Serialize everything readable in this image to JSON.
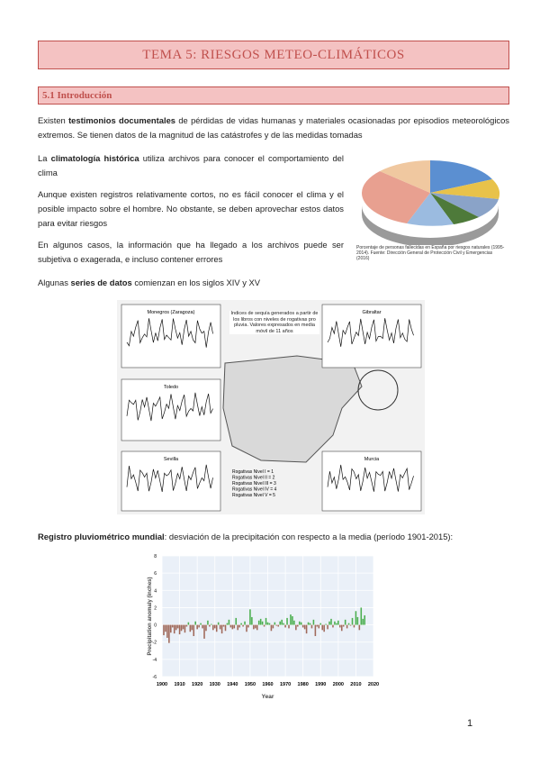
{
  "header": {
    "title": "TEMA 5: RIESGOS METEO-CLIMÁTICOS"
  },
  "section": {
    "title": "5.1 Introducción"
  },
  "paragraphs": [
    [
      "Existen ",
      "testimonios documentales",
      " de pérdidas de vidas humanas y materiales ocasionadas por episodios meteorológicos extremos. Se tienen datos de la magnitud de las catástrofes y de las medidas tomadas"
    ],
    [
      "La ",
      "climatología histórica",
      " utiliza archivos para conocer el comportamiento del clima"
    ],
    [
      "Aunque existen registros relativamente cortos, no es fácil conocer el clima y el posible impacto sobre el hombre. No obstante, se deben aprovechar estos datos para evitar riesgos"
    ],
    [
      "En algunos casos, la información que ha llegado a los archivos puede ser subjetiva o exagerada, e incluso contener errores"
    ],
    [
      "Algunas ",
      "series de datos",
      " comienzan en los siglos XIV y XV"
    ],
    [
      "Registro pluviométrico mundial",
      ": desviación de la precipitación con respecto a la media (período 1901-2015):"
    ]
  ],
  "pie_caption": "Porcentaje de personas fallecidas en España por riesgos naturales (1995-2014). Fuente: Dirección General de Protección Civil y Emergencias (2016)",
  "map_figure": {
    "panels": [
      "Monegros (Zaragoza)",
      "Gibraltar",
      "Toledo",
      "Sevilla",
      "Murcia"
    ],
    "note": "Índices de sequía generados a partir de los libros con niveles de rogativas pro pluvia. Valores expresados en media móvil de 11 años",
    "legend": [
      "Rogativas Nivel I = 1",
      "Rogativas Nivel II = 2",
      "Rogativas Nivel III = 3",
      "Rogativas Nivel IV = 4",
      "Rogativas Nivel V = 5"
    ]
  },
  "precip_chart": {
    "type": "bar",
    "x_label": "Year",
    "y_label": "Precipitation anomaly (inches)",
    "xlim": [
      1900,
      2020
    ],
    "xticks": [
      1900,
      1910,
      1920,
      1930,
      1940,
      1950,
      1960,
      1970,
      1980,
      1990,
      2000,
      2010,
      2020
    ],
    "ylim": [
      -6,
      8
    ],
    "yticks": [
      -6,
      -4,
      -2,
      0,
      2,
      4,
      6,
      8
    ],
    "positive_color": "#4caf50",
    "negative_color": "#a0695a",
    "grid": true,
    "x": [
      1901,
      1902,
      1903,
      1904,
      1905,
      1906,
      1907,
      1908,
      1909,
      1910,
      1911,
      1912,
      1913,
      1914,
      1915,
      1916,
      1917,
      1918,
      1919,
      1920,
      1921,
      1922,
      1923,
      1924,
      1925,
      1926,
      1927,
      1928,
      1929,
      1930,
      1931,
      1932,
      1933,
      1934,
      1935,
      1936,
      1937,
      1938,
      1939,
      1940,
      1941,
      1942,
      1943,
      1944,
      1945,
      1946,
      1947,
      1948,
      1949,
      1950,
      1951,
      1952,
      1953,
      1954,
      1955,
      1956,
      1957,
      1958,
      1959,
      1960,
      1961,
      1962,
      1963,
      1964,
      1965,
      1966,
      1967,
      1968,
      1969,
      1970,
      1971,
      1972,
      1973,
      1974,
      1975,
      1976,
      1977,
      1978,
      1979,
      1980,
      1981,
      1982,
      1983,
      1984,
      1985,
      1986,
      1987,
      1988,
      1989,
      1990,
      1991,
      1992,
      1993,
      1994,
      1995,
      1996,
      1997,
      1998,
      1999,
      2000,
      2001,
      2002,
      2003,
      2004,
      2005,
      2006,
      2007,
      2008,
      2009,
      2010,
      2011,
      2012,
      2013,
      2014,
      2015
    ],
    "values": [
      -1.2,
      -0.8,
      -1.5,
      -2.1,
      -0.9,
      -0.3,
      -1.0,
      -0.6,
      -0.4,
      -1.1,
      -0.7,
      -0.5,
      -0.9,
      -0.2,
      0.3,
      -0.8,
      -0.6,
      -1.3,
      0.4,
      -0.5,
      -0.3,
      0.2,
      -0.4,
      -1.6,
      -0.7,
      0.5,
      -0.2,
      0.1,
      -0.6,
      -0.4,
      -0.8,
      0.3,
      -0.5,
      -1.0,
      -0.2,
      -0.7,
      0.2,
      0.6,
      -0.3,
      -0.5,
      -0.4,
      0.8,
      -0.6,
      -0.3,
      0.2,
      -0.2,
      0.4,
      -0.8,
      -0.3,
      1.8,
      0.9,
      -0.5,
      -0.4,
      -0.6,
      0.5,
      0.7,
      0.4,
      -0.2,
      0.8,
      0.3,
      0.2,
      -0.7,
      -0.4,
      0.3,
      -0.1,
      -0.2,
      0.4,
      0.6,
      0.2,
      -0.3,
      0.8,
      -0.4,
      1.2,
      1.0,
      0.5,
      -0.6,
      -0.2,
      0.4,
      0.3,
      -0.3,
      -0.5,
      -1.0,
      0.3,
      0.2,
      -0.4,
      0.6,
      -1.3,
      -0.2,
      -0.4,
      0.2,
      -0.6,
      -0.8,
      0.1,
      -0.5,
      0.4,
      0.7,
      -0.3,
      0.4,
      0.2,
      0.5,
      -0.3,
      -0.7,
      -0.2,
      0.6,
      -0.4,
      0.2,
      -0.1,
      0.8,
      -0.3,
      1.6,
      0.9,
      -0.6,
      2.0,
      0.7,
      1.1
    ]
  },
  "footer": {
    "page_number": "1"
  }
}
